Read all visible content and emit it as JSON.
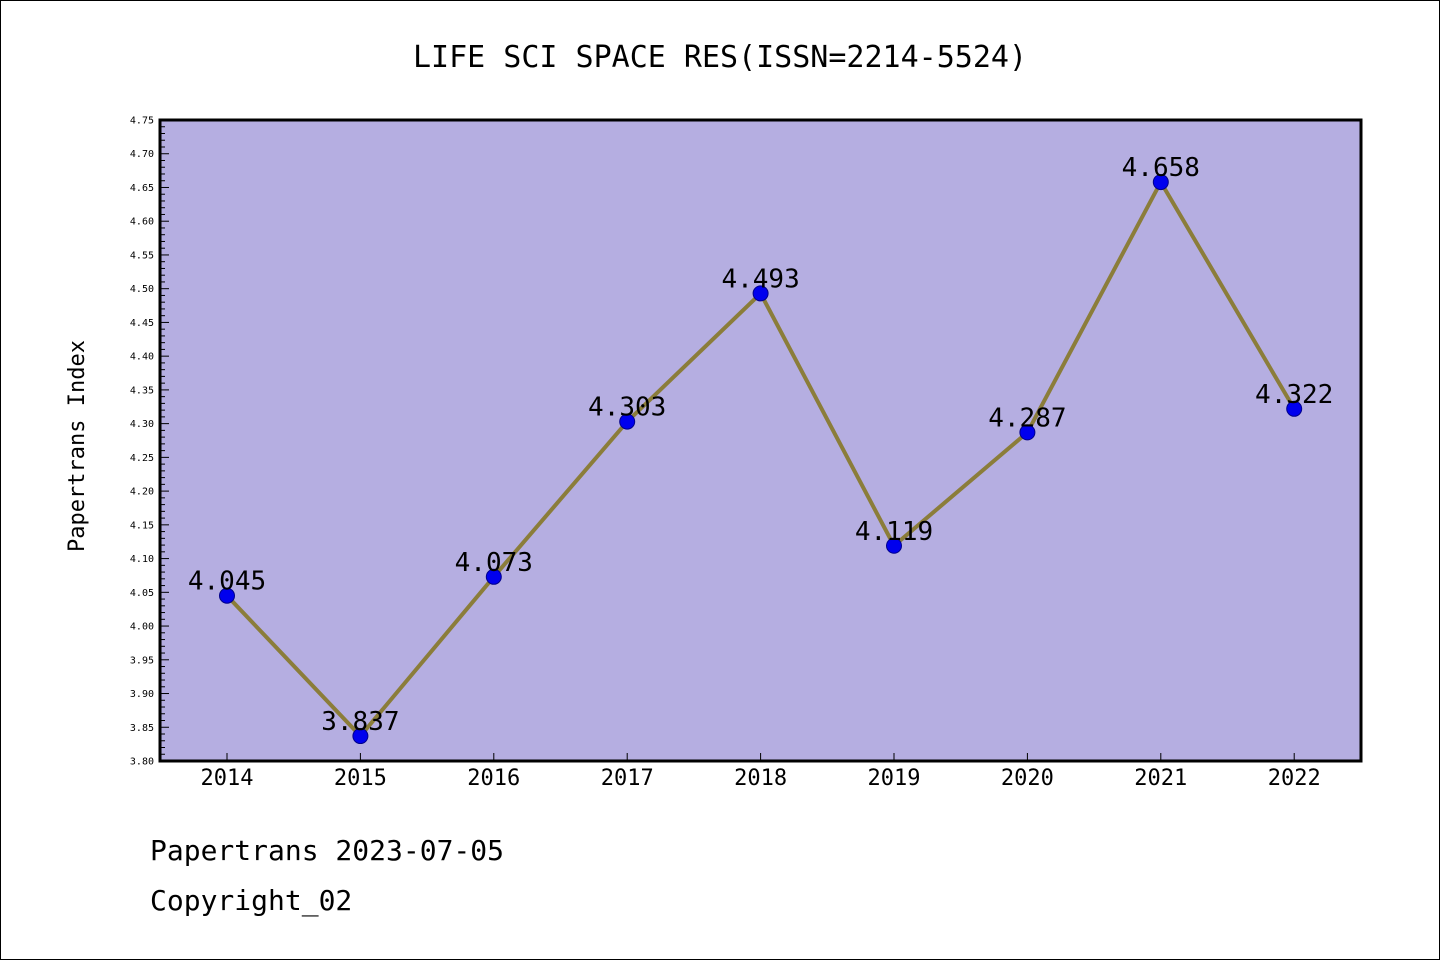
{
  "chart_data": {
    "type": "line",
    "title": "LIFE SCI SPACE RES(ISSN=2214-5524)",
    "xlabel": "",
    "ylabel": "Papertrans Index",
    "categories": [
      "2014",
      "2015",
      "2016",
      "2017",
      "2018",
      "2019",
      "2020",
      "2021",
      "2022"
    ],
    "series": [
      {
        "values": [
          4.045,
          3.837,
          4.073,
          4.303,
          4.493,
          4.119,
          4.287,
          4.658,
          4.322
        ],
        "labels": [
          "4.045",
          "3.837",
          "4.073",
          "4.303",
          "4.493",
          "4.119",
          "4.287",
          "4.658",
          "4.322"
        ]
      }
    ],
    "ylim": [
      3.8,
      4.75
    ],
    "yticks": [
      "3.80",
      "3.85",
      "3.90",
      "3.95",
      "4.00",
      "4.05",
      "4.10",
      "4.15",
      "4.20",
      "4.25",
      "4.30",
      "4.35",
      "4.40",
      "4.45",
      "4.50",
      "4.55",
      "4.60",
      "4.65",
      "4.70",
      "4.75"
    ],
    "grid": false,
    "colors": {
      "plot_background": "#b5aee1",
      "line": "#8b7d3a",
      "marker": "#0000ee",
      "marker_edge": "#00008b"
    }
  },
  "footer": {
    "line1": "Papertrans 2023-07-05",
    "line2": "Copyright_02"
  }
}
